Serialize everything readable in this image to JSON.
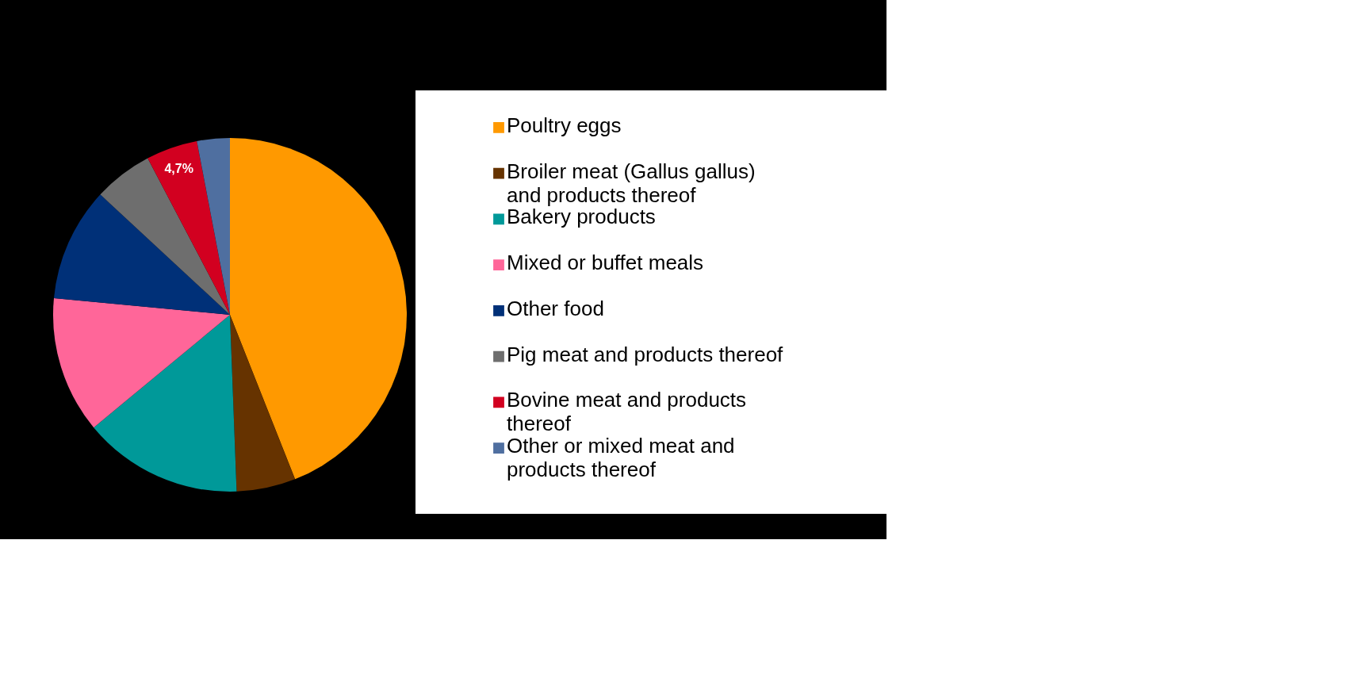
{
  "chart_data": {
    "type": "pie",
    "categories": [
      "Poultry eggs",
      "Broiler meat (Gallus gallus) and products thereof",
      "Bakery products",
      "Mixed or buffet meals",
      "Other food",
      "Pig meat and products thereof",
      "Bovine meat and products thereof",
      "Other or mixed meat and products thereof"
    ],
    "values": [
      44.0,
      5.4,
      14.6,
      12.5,
      10.4,
      5.4,
      4.7,
      3.0
    ],
    "colors": [
      "#ff9900",
      "#663300",
      "#009999",
      "#ff6699",
      "#003078",
      "#6e6e6e",
      "#d20020",
      "#4f6fa0"
    ],
    "value_labels": [
      null,
      null,
      null,
      null,
      null,
      null,
      "4,7%",
      null
    ],
    "legend": "right"
  }
}
